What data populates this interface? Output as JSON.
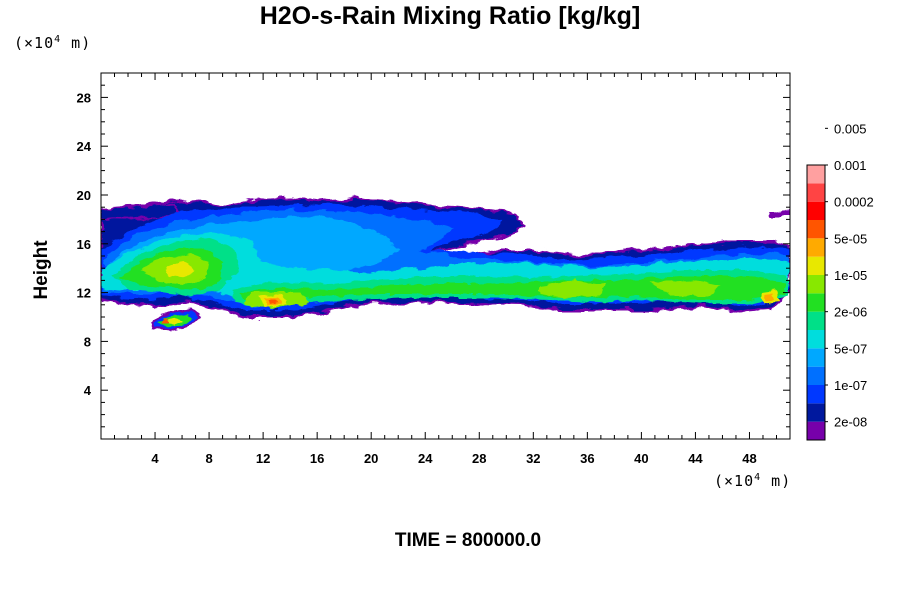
{
  "chart_data": {
    "type": "heatmap",
    "title": "H2O-s-Rain Mixing Ratio [kg/kg]",
    "ylabel": "Height",
    "xunit": {
      "prefix": "(×10",
      "exp": "4",
      "suffix": " m)"
    },
    "yunit": {
      "prefix": "(×10",
      "exp": "4",
      "suffix": " m)"
    },
    "footer": "TIME = 800000.0",
    "xlim": [
      0,
      51
    ],
    "ylim": [
      0,
      30
    ],
    "xticks": [
      "4",
      "8",
      "12",
      "16",
      "20",
      "24",
      "28",
      "32",
      "36",
      "40",
      "44",
      "48"
    ],
    "yticks": [
      "4",
      "8",
      "12",
      "16",
      "20",
      "24",
      "28"
    ],
    "legend": {
      "colors": [
        "#7700aa",
        "#00189e",
        "#0038ff",
        "#0070ff",
        "#00a8ff",
        "#00dddd",
        "#00e088",
        "#22e022",
        "#88e800",
        "#e8e800",
        "#ffaa00",
        "#ff5500",
        "#ff0000",
        "#ff4444",
        "#ffa0a0"
      ],
      "labels": [
        "2e-08",
        "1e-07",
        "5e-07",
        "2e-06",
        "1e-05",
        "5e-05",
        "0.0002",
        "0.001",
        "0.005"
      ]
    }
  }
}
